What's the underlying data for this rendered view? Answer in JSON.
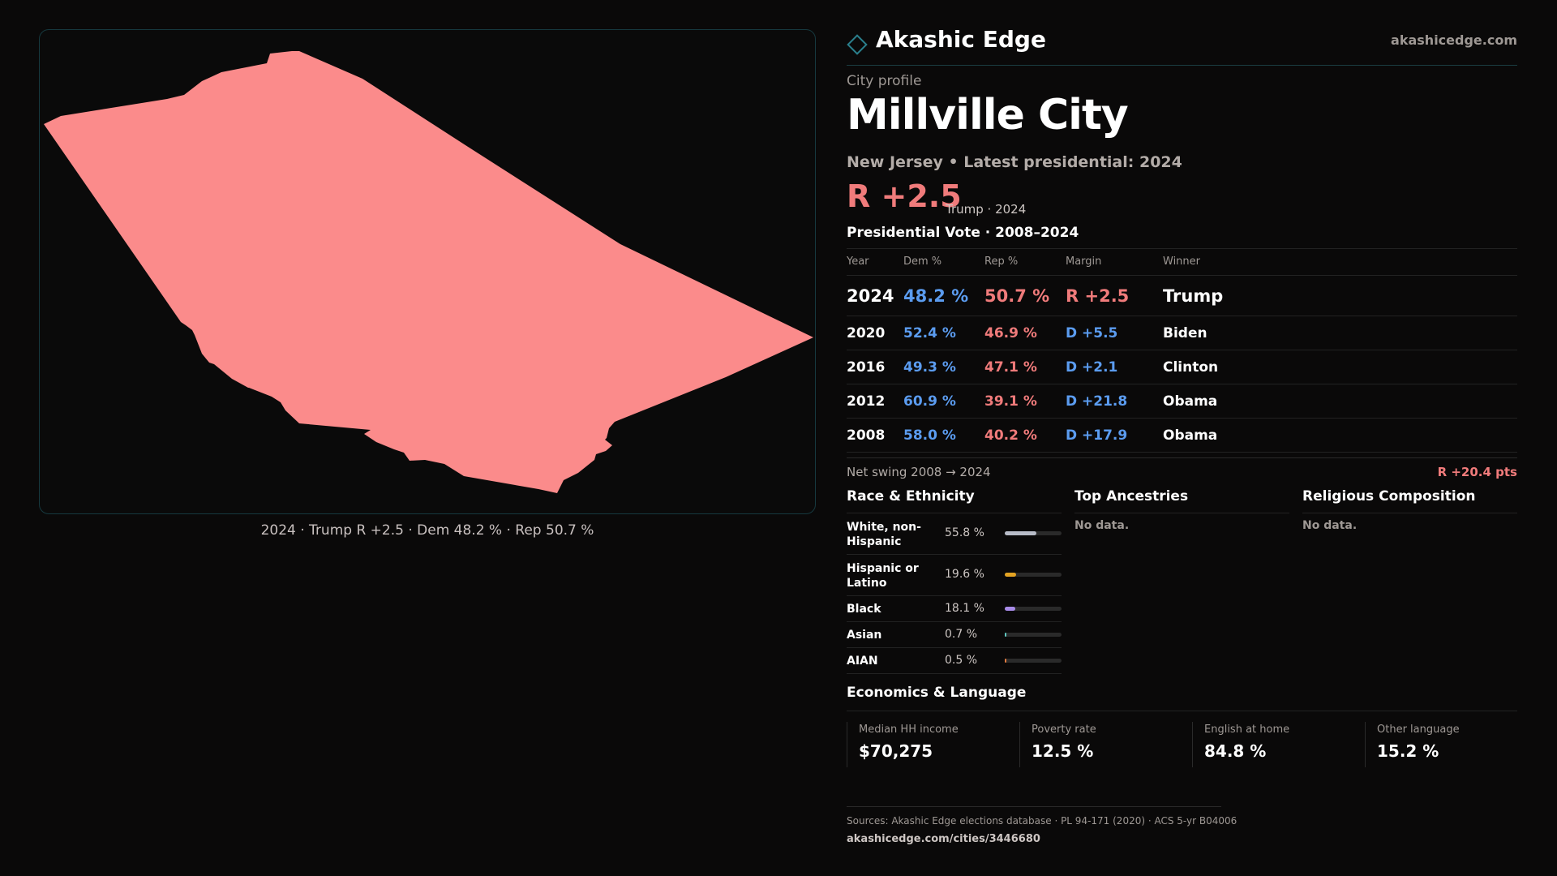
{
  "colors": {
    "map_fill": "#fb8b8b",
    "dem": "#5b9cf0",
    "rep": "#f07b7b",
    "accent": "#2a7f8c"
  },
  "map": {
    "caption": "2024 · Trump R +2.5 · Dem 48.2 % · Rep 50.7 %"
  },
  "brand": {
    "icon": "diamond-icon",
    "name": "Akashic Edge",
    "url": "akashicedge.com"
  },
  "profile": {
    "eyebrow": "City profile",
    "title": "Millville City",
    "subtitle": "New Jersey • Latest presidential: 2024",
    "margin": "R +2.5",
    "margin_note": "Trump · 2024"
  },
  "vote": {
    "title": "Presidential Vote · 2008–2024",
    "headers": {
      "year": "Year",
      "dem": "Dem %",
      "rep": "Rep %",
      "margin": "Margin",
      "winner": "Winner"
    },
    "rows": [
      {
        "year": "2024",
        "dem": "48.2 %",
        "rep": "50.7 %",
        "margin": "R +2.5",
        "party": "R",
        "winner": "Trump"
      },
      {
        "year": "2020",
        "dem": "52.4 %",
        "rep": "46.9 %",
        "margin": "D +5.5",
        "party": "D",
        "winner": "Biden"
      },
      {
        "year": "2016",
        "dem": "49.3 %",
        "rep": "47.1 %",
        "margin": "D +2.1",
        "party": "D",
        "winner": "Clinton"
      },
      {
        "year": "2012",
        "dem": "60.9 %",
        "rep": "39.1 %",
        "margin": "D +21.8",
        "party": "D",
        "winner": "Obama"
      },
      {
        "year": "2008",
        "dem": "58.0 %",
        "rep": "40.2 %",
        "margin": "D +17.9",
        "party": "D",
        "winner": "Obama"
      }
    ],
    "swing_label": "Net swing 2008 → 2024",
    "swing_value": "R +20.4 pts"
  },
  "race": {
    "title": "Race & Ethnicity",
    "rows": [
      {
        "label": "White, non-Hispanic",
        "pct": "55.8 %",
        "share": 0.558,
        "color": "#b8bcc8"
      },
      {
        "label": "Hispanic or Latino",
        "pct": "19.6 %",
        "share": 0.196,
        "color": "#e3a323"
      },
      {
        "label": "Black",
        "pct": "18.1 %",
        "share": 0.181,
        "color": "#a88be8"
      },
      {
        "label": "Asian",
        "pct": "0.7 %",
        "share": 0.007,
        "color": "#5fc7c0"
      },
      {
        "label": "AIAN",
        "pct": "0.5 %",
        "share": 0.005,
        "color": "#e07a3f"
      }
    ]
  },
  "ancestries": {
    "title": "Top Ancestries",
    "empty": "No data."
  },
  "religion": {
    "title": "Religious Composition",
    "empty": "No data."
  },
  "economics": {
    "title": "Economics & Language",
    "cards": [
      {
        "label": "Median HH income",
        "value": "$70,275"
      },
      {
        "label": "Poverty rate",
        "value": "12.5 %"
      },
      {
        "label": "English at home",
        "value": "84.8 %"
      },
      {
        "label": "Other language",
        "value": "15.2 %"
      }
    ]
  },
  "footer": {
    "sources": "Sources: Akashic Edge elections database · PL 94-171 (2020) · ACS 5-yr B04006",
    "url": "akashicedge.com/cities/3446680"
  }
}
